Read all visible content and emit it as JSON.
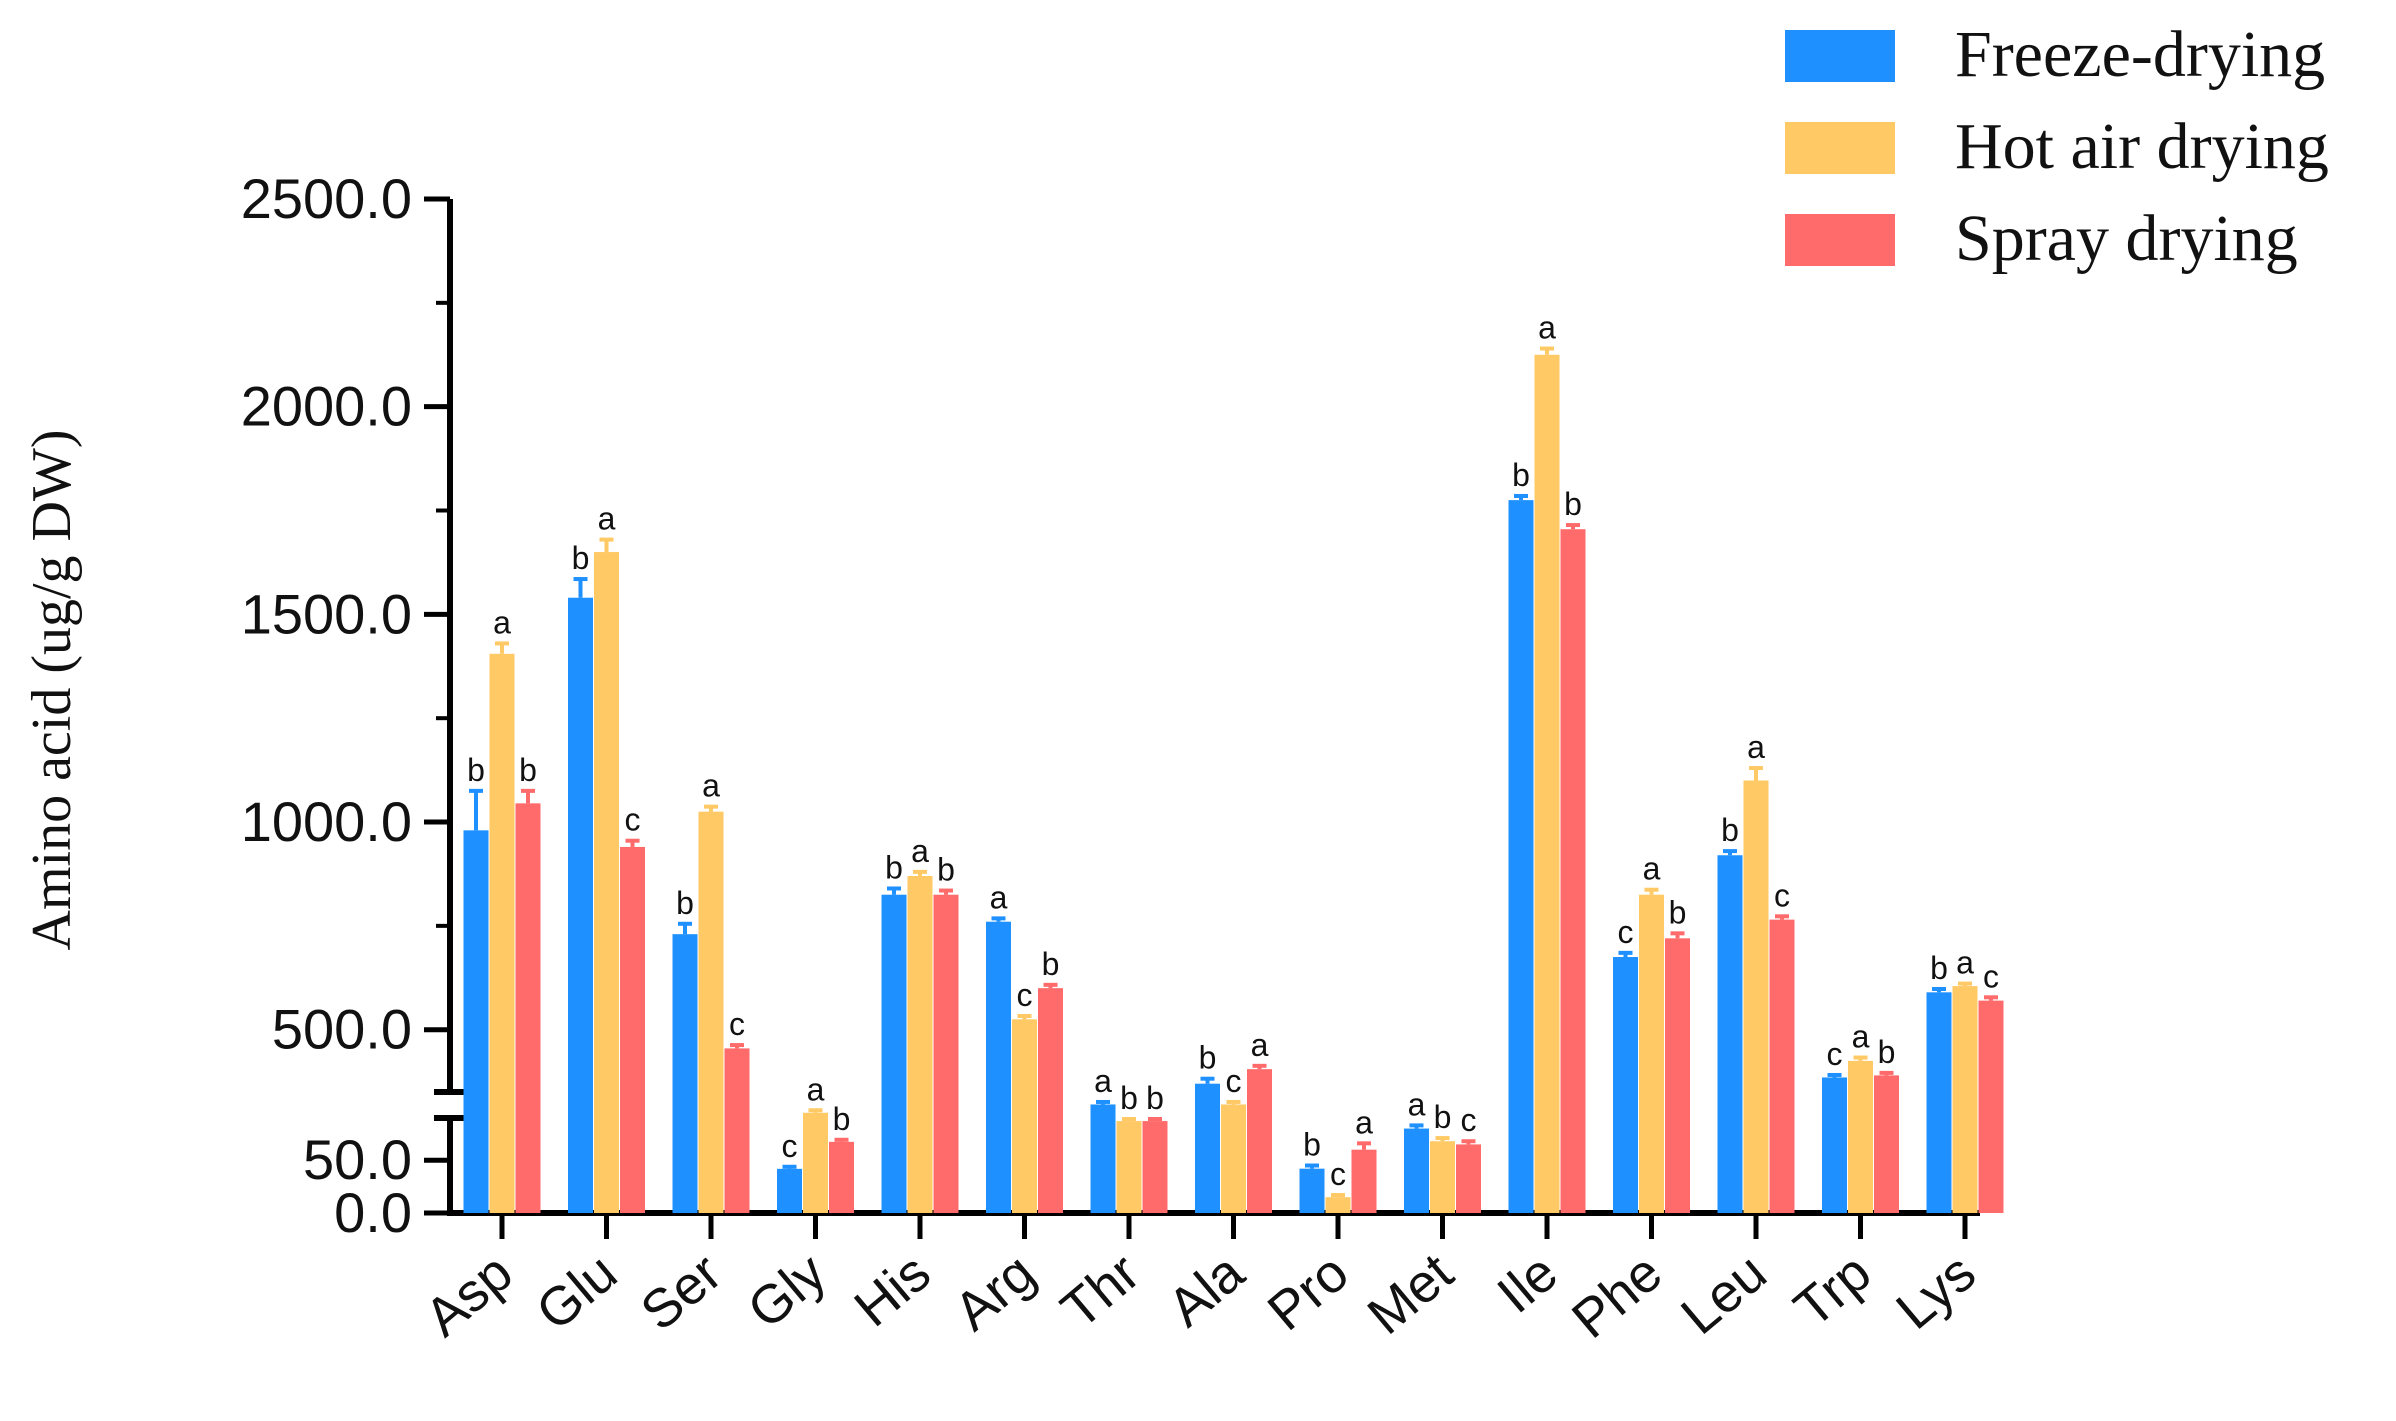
{
  "chart_data": {
    "type": "bar",
    "ylabel": "Amino acid (ug/g DW)",
    "categories": [
      "Asp",
      "Glu",
      "Ser",
      "Gly",
      "His",
      "Arg",
      "Thr",
      "Ala",
      "Pro",
      "Met",
      "Ile",
      "Phe",
      "Leu",
      "Trp",
      "Lys"
    ],
    "y_ticks_upper": [
      "500.0",
      "1000.0",
      "1500.0",
      "2000.0",
      "2500.0"
    ],
    "y_ticks_lower": [
      "0.0",
      "50.0"
    ],
    "axis_break": {
      "lower_range": [
        0,
        90
      ],
      "upper_range": [
        350,
        2500
      ]
    },
    "legend_position": "top-right",
    "series": [
      {
        "name": "Freeze-drying",
        "color": "#1E90FF",
        "values": [
          980,
          1540,
          730,
          165,
          825,
          760,
          320,
          370,
          42,
          80,
          1775,
          675,
          920,
          385,
          590
        ],
        "errors": [
          95,
          45,
          25,
          5,
          15,
          8,
          6,
          12,
          3,
          3,
          10,
          10,
          10,
          6,
          8
        ],
        "letters": [
          "b",
          "b",
          "b",
          "c",
          "b",
          "a",
          "a",
          "b",
          "b",
          "a",
          "b",
          "c",
          "b",
          "c",
          "b"
        ]
      },
      {
        "name": "Hot air drying",
        "color": "#FFC966",
        "values": [
          1405,
          1650,
          1025,
          300,
          870,
          525,
          280,
          320,
          15,
          68,
          2125,
          825,
          1100,
          425,
          605
        ],
        "errors": [
          25,
          30,
          12,
          6,
          10,
          8,
          5,
          6,
          2,
          3,
          15,
          12,
          30,
          8,
          6
        ],
        "letters": [
          "a",
          "a",
          "a",
          "a",
          "a",
          "c",
          "b",
          "c",
          "c",
          "b",
          "a",
          "a",
          "a",
          "a",
          "a"
        ]
      },
      {
        "name": "Spray drying",
        "color": "#FF6B6B",
        "values": [
          1045,
          940,
          455,
          230,
          825,
          600,
          280,
          405,
          60,
          65,
          1705,
          720,
          765,
          390,
          570
        ],
        "errors": [
          30,
          15,
          8,
          5,
          10,
          8,
          5,
          8,
          6,
          3,
          10,
          12,
          8,
          6,
          8
        ],
        "letters": [
          "b",
          "c",
          "c",
          "b",
          "b",
          "b",
          "b",
          "a",
          "a",
          "c",
          "b",
          "b",
          "c",
          "b",
          "c"
        ]
      }
    ]
  }
}
